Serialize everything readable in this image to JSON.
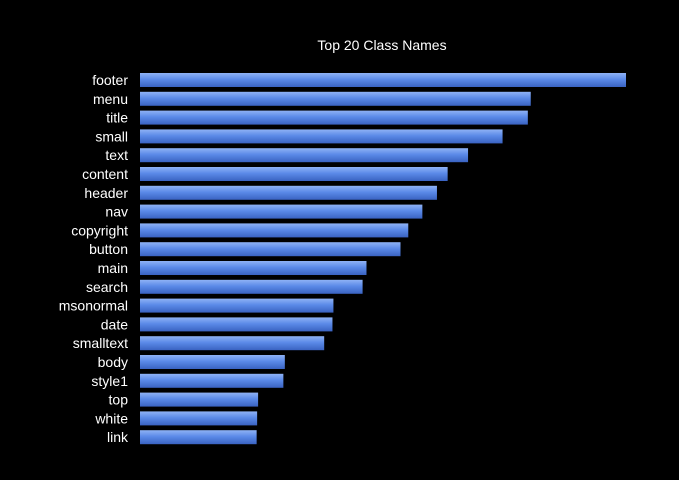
{
  "chart_data": {
    "type": "bar",
    "orientation": "horizontal",
    "title": "Top 20 Class Names",
    "categories": [
      "footer",
      "menu",
      "title",
      "small",
      "text",
      "content",
      "header",
      "nav",
      "copyright",
      "button",
      "main",
      "search",
      "msonormal",
      "date",
      "smalltext",
      "body",
      "style1",
      "top",
      "white",
      "link"
    ],
    "values": [
      100,
      80.4,
      79.8,
      74.6,
      67.5,
      63.3,
      61.1,
      58.1,
      55.2,
      53.6,
      46.6,
      45.8,
      39.8,
      39.6,
      37.9,
      29.8,
      29.5,
      24.3,
      24.1,
      24
    ],
    "xlim": [
      0,
      100
    ],
    "xlabel": "",
    "ylabel": "",
    "grid": false,
    "legend": "none",
    "colors": {
      "background": "#000000",
      "bar": "#5b8ae8",
      "bar_highlight": "#8fb2f5",
      "bar_shadow": "#3a63c2",
      "text": "#ffffff"
    }
  }
}
